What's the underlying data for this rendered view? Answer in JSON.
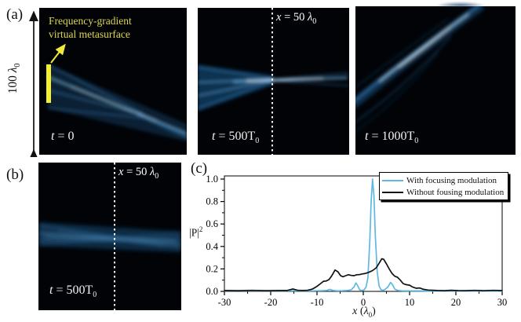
{
  "figure": {
    "panel_a": {
      "label": "(a)",
      "height_label": {
        "num": "100 ",
        "lambda": "λ",
        "sub": "0"
      },
      "annotation": {
        "line1": "Frequency-gradient",
        "line2": "virtual metasurface"
      },
      "sub1": {
        "time": {
          "it": "t",
          "rest": " = 0",
          "sub": ""
        }
      },
      "sub2": {
        "time": {
          "it": "t",
          "rest": " = 500T",
          "sub": "0"
        },
        "xline": {
          "it": "x",
          "rest": " = 50 ",
          "lambda": "λ",
          "sub": "0"
        }
      },
      "sub3": {
        "time": {
          "it": "t",
          "rest": " = 1000T",
          "sub": "0"
        }
      }
    },
    "panel_b": {
      "label": "(b)",
      "time": {
        "it": "t",
        "rest": " = 500T",
        "sub": "0"
      },
      "xline": {
        "it": "x",
        "rest": " = 50 ",
        "lambda": "λ",
        "sub": "0"
      }
    },
    "panel_c": {
      "label": "(c)",
      "ylabel": {
        "pre": "|P|",
        "sup": "2"
      },
      "xlabel": {
        "it": "x",
        "pre": " (",
        "lambda": "λ",
        "sub": "0",
        "post": ")"
      }
    }
  },
  "chart_data": {
    "type": "line",
    "title": "",
    "xlabel": "x (λ0)",
    "ylabel": "|P|^2",
    "xlim": [
      -30,
      30
    ],
    "ylim": [
      0,
      1.0
    ],
    "xticks": [
      -30,
      -20,
      -10,
      0,
      10,
      20,
      30
    ],
    "yticks": [
      0.0,
      0.2,
      0.4,
      0.6,
      0.8,
      1.0
    ],
    "xminor": 5,
    "yminor": 0.1,
    "grid": false,
    "legend_position": "top-right",
    "series": [
      {
        "name": "With focusing modulation",
        "color": "#5fb8e4",
        "points": [
          [
            -30,
            0.005
          ],
          [
            -25,
            0.005
          ],
          [
            -20,
            0.004
          ],
          [
            -17,
            0.004
          ],
          [
            -15,
            0.006
          ],
          [
            -13,
            0.004
          ],
          [
            -11,
            0.005
          ],
          [
            -9,
            0.006
          ],
          [
            -8,
            0.008
          ],
          [
            -7.2,
            0.018
          ],
          [
            -6.5,
            0.008
          ],
          [
            -5.5,
            0.005
          ],
          [
            -4.5,
            0.006
          ],
          [
            -3.5,
            0.008
          ],
          [
            -2.6,
            0.015
          ],
          [
            -2,
            0.04
          ],
          [
            -1.6,
            0.075
          ],
          [
            -1.2,
            0.05
          ],
          [
            -0.8,
            0.015
          ],
          [
            -0.3,
            0.008
          ],
          [
            0.2,
            0.015
          ],
          [
            0.6,
            0.04
          ],
          [
            1.0,
            0.12
          ],
          [
            1.4,
            0.45
          ],
          [
            1.7,
            0.8
          ],
          [
            2.0,
            1.0
          ],
          [
            2.3,
            0.85
          ],
          [
            2.6,
            0.5
          ],
          [
            3.0,
            0.18
          ],
          [
            3.4,
            0.05
          ],
          [
            3.8,
            0.015
          ],
          [
            4.3,
            0.01
          ],
          [
            4.8,
            0.02
          ],
          [
            5.4,
            0.045
          ],
          [
            5.9,
            0.08
          ],
          [
            6.3,
            0.06
          ],
          [
            6.8,
            0.02
          ],
          [
            7.5,
            0.008
          ],
          [
            8.5,
            0.005
          ],
          [
            10,
            0.004
          ],
          [
            12,
            0.004
          ],
          [
            15,
            0.003
          ],
          [
            20,
            0.003
          ],
          [
            25,
            0.003
          ],
          [
            30,
            0.003
          ]
        ]
      },
      {
        "name": "Without fousing modulation",
        "color": "#111111",
        "points": [
          [
            -30,
            0.008
          ],
          [
            -27,
            0.006
          ],
          [
            -24,
            0.009
          ],
          [
            -21,
            0.006
          ],
          [
            -18,
            0.008
          ],
          [
            -16.5,
            0.008
          ],
          [
            -15.2,
            0.022
          ],
          [
            -14.2,
            0.01
          ],
          [
            -13,
            0.008
          ],
          [
            -12,
            0.01
          ],
          [
            -11,
            0.02
          ],
          [
            -10,
            0.045
          ],
          [
            -9.2,
            0.07
          ],
          [
            -8.6,
            0.09
          ],
          [
            -8,
            0.092
          ],
          [
            -7.4,
            0.105
          ],
          [
            -6.8,
            0.14
          ],
          [
            -6.1,
            0.19
          ],
          [
            -5.5,
            0.175
          ],
          [
            -4.9,
            0.14
          ],
          [
            -4.4,
            0.13
          ],
          [
            -3.8,
            0.14
          ],
          [
            -3.2,
            0.148
          ],
          [
            -2.6,
            0.142
          ],
          [
            -2,
            0.14
          ],
          [
            -1.4,
            0.148
          ],
          [
            -0.8,
            0.15
          ],
          [
            -0.2,
            0.155
          ],
          [
            0.5,
            0.16
          ],
          [
            1.2,
            0.17
          ],
          [
            2,
            0.185
          ],
          [
            2.8,
            0.21
          ],
          [
            3.4,
            0.25
          ],
          [
            4,
            0.29
          ],
          [
            4.4,
            0.285
          ],
          [
            5,
            0.245
          ],
          [
            5.6,
            0.2
          ],
          [
            6.2,
            0.16
          ],
          [
            6.8,
            0.135
          ],
          [
            7.4,
            0.125
          ],
          [
            8,
            0.1
          ],
          [
            8.6,
            0.07
          ],
          [
            9.2,
            0.06
          ],
          [
            10,
            0.055
          ],
          [
            10.6,
            0.04
          ],
          [
            11.4,
            0.028
          ],
          [
            12.2,
            0.03
          ],
          [
            13,
            0.018
          ],
          [
            14,
            0.012
          ],
          [
            15,
            0.01
          ],
          [
            16,
            0.008
          ],
          [
            17.5,
            0.006
          ],
          [
            19,
            0.01
          ],
          [
            20.5,
            0.007
          ],
          [
            22,
            0.006
          ],
          [
            24,
            0.009
          ],
          [
            26,
            0.006
          ],
          [
            28,
            0.009
          ],
          [
            30,
            0.007
          ]
        ]
      }
    ]
  }
}
